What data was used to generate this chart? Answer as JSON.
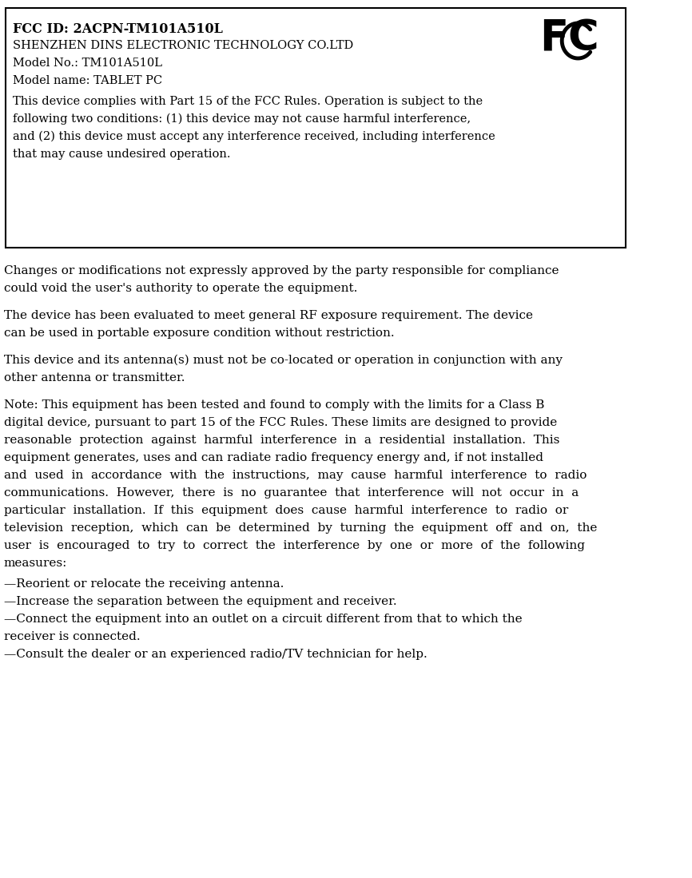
{
  "background_color": "#ffffff",
  "box": {
    "title_bold": "FCC ID: 2ACPN-TM101A510L",
    "line2": "SHENZHEN DINS ELECTRONIC TECHNOLOGY CO.LTD",
    "line3": "Model No.: TM101A510L",
    "line4": "Model name: TABLET PC",
    "body": "This device complies with Part 15 of the FCC Rules. Operation is subject to the following two conditions: (1) this device may not cause harmful interference, and (2) this device must accept any interference received, including interference that may cause undesired operation."
  },
  "para1": "Changes or modifications not expressly approved by the party responsible for compliance could void the user's authority to operate the equipment.",
  "para2": "The device has been evaluated to meet general RF exposure requirement. The device can be used in portable exposure condition without restriction.",
  "para3": "This device and its antenna(s) must not be co-located or operation in conjunction with any other antenna or transmitter.",
  "para4_justified": "Note: This equipment has been tested and found to comply with the limits for a Class B digital device, pursuant to part 15 of the FCC Rules. These limits are designed to provide reasonable protection against harmful interference in a residential installation. This equipment generates, uses and can radiate radio frequency energy and, if not installed and used in accordance with the instructions, may cause harmful interference to radio communications. However, there is no guarantee that interference will not occur in a particular installation. If this equipment does cause harmful interference to radio or television reception, which can be determined by turning the equipment off and on, the user is encouraged to try to correct the interference by one or more of the following measures:",
  "bullet1": "—Reorient or relocate the receiving antenna.",
  "bullet2": "—Increase the separation between the equipment and receiver.",
  "bullet3": "—Connect the equipment into an outlet on a circuit different from that to which the receiver is connected.",
  "bullet4": "—Consult the dealer or an experienced radio/TV technician for help.",
  "font_family": "DejaVu Serif",
  "font_size_box_title": 11,
  "font_size_box_body": 10.5,
  "font_size_body": 11,
  "text_color": "#000000"
}
